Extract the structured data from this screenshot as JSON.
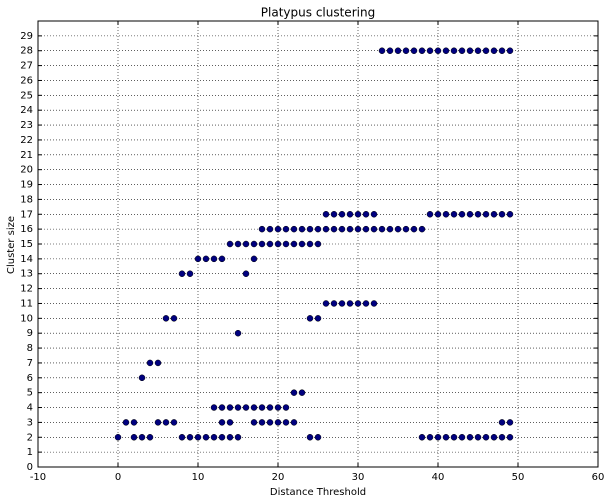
{
  "chart_data": {
    "type": "scatter",
    "title": "Platypus clustering",
    "x_label": "Distance Threshold",
    "y_label": "Cluster size",
    "color": "#00007f",
    "edge_color": "#000000",
    "grid": true,
    "xlim": [
      -10,
      60
    ],
    "xticks": [
      -10,
      0,
      10,
      20,
      30,
      40,
      50,
      60
    ],
    "ylim": [
      0,
      30
    ],
    "yticks": [
      0,
      1,
      2,
      3,
      4,
      5,
      6,
      7,
      8,
      9,
      10,
      11,
      12,
      13,
      14,
      15,
      16,
      17,
      18,
      19,
      20,
      21,
      22,
      23,
      24,
      25,
      26,
      27,
      28,
      29
    ],
    "x": [
      33,
      34,
      35,
      36,
      37,
      38,
      39,
      40,
      41,
      42,
      43,
      44,
      45,
      46,
      47,
      48,
      49,
      26,
      27,
      28,
      29,
      30,
      31,
      32,
      39,
      40,
      41,
      42,
      43,
      44,
      45,
      46,
      47,
      48,
      49,
      18,
      19,
      20,
      21,
      22,
      23,
      24,
      25,
      26,
      27,
      28,
      29,
      30,
      31,
      32,
      33,
      34,
      35,
      36,
      37,
      38,
      14,
      15,
      16,
      17,
      18,
      19,
      20,
      21,
      22,
      23,
      24,
      25,
      10,
      11,
      12,
      13,
      17,
      8,
      9,
      16,
      26,
      27,
      28,
      29,
      30,
      31,
      32,
      6,
      7,
      24,
      25,
      15,
      4,
      5,
      3,
      22,
      23,
      12,
      13,
      14,
      15,
      16,
      17,
      18,
      19,
      20,
      21,
      1,
      2,
      5,
      6,
      7,
      13,
      14,
      17,
      18,
      19,
      20,
      21,
      22,
      48,
      49,
      0,
      2,
      3,
      4,
      8,
      9,
      10,
      11,
      12,
      13,
      14,
      15,
      24,
      25,
      38,
      39,
      40,
      41,
      42,
      43,
      44,
      45,
      46,
      47,
      48,
      49
    ],
    "values": [
      28,
      28,
      28,
      28,
      28,
      28,
      28,
      28,
      28,
      28,
      28,
      28,
      28,
      28,
      28,
      28,
      28,
      17,
      17,
      17,
      17,
      17,
      17,
      17,
      17,
      17,
      17,
      17,
      17,
      17,
      17,
      17,
      17,
      17,
      17,
      16,
      16,
      16,
      16,
      16,
      16,
      16,
      16,
      16,
      16,
      16,
      16,
      16,
      16,
      16,
      16,
      16,
      16,
      16,
      16,
      16,
      15,
      15,
      15,
      15,
      15,
      15,
      15,
      15,
      15,
      15,
      15,
      15,
      14,
      14,
      14,
      14,
      14,
      13,
      13,
      13,
      11,
      11,
      11,
      11,
      11,
      11,
      11,
      10,
      10,
      10,
      10,
      9,
      7,
      7,
      6,
      5,
      5,
      4,
      4,
      4,
      4,
      4,
      4,
      4,
      4,
      4,
      4,
      3,
      3,
      3,
      3,
      3,
      3,
      3,
      3,
      3,
      3,
      3,
      3,
      3,
      3,
      3,
      2,
      2,
      2,
      2,
      2,
      2,
      2,
      2,
      2,
      2,
      2,
      2,
      2,
      2,
      2,
      2,
      2,
      2,
      2,
      2,
      2,
      2,
      2,
      2,
      2,
      2
    ]
  }
}
